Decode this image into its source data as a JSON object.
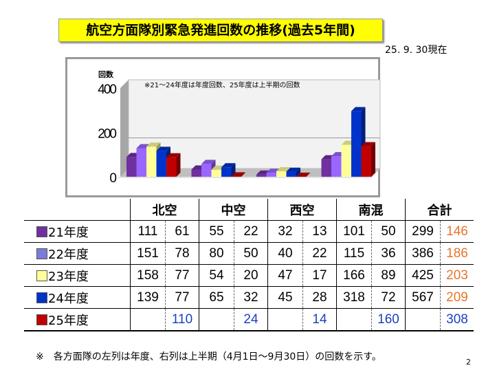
{
  "title": "航空方面隊別緊急発進回数の推移(過去5年間)",
  "date": "25. 9. 30現在",
  "chart_data": {
    "type": "bar",
    "ylabel": "回数",
    "annotation": "※21～24年度は年度回数、25年度は上半期の回数",
    "categories": [
      "北空",
      "中空",
      "西空",
      "南混"
    ],
    "yticks": [
      "0",
      "200",
      "400"
    ],
    "ylim": [
      0,
      400
    ],
    "series": [
      {
        "name": "21年度",
        "color": "#7030a0",
        "values": [
          111,
          55,
          32,
          101
        ]
      },
      {
        "name": "22年度",
        "color": "#9966ff",
        "values": [
          151,
          80,
          40,
          115
        ]
      },
      {
        "name": "23年度",
        "color": "#ffff99",
        "values": [
          158,
          54,
          47,
          166
        ]
      },
      {
        "name": "24年度",
        "color": "#0033cc",
        "values": [
          139,
          65,
          45,
          318
        ]
      },
      {
        "name": "25年度",
        "color": "#c00000",
        "values": [
          110,
          24,
          14,
          160
        ]
      }
    ]
  },
  "table": {
    "headers": [
      "北空",
      "中空",
      "西空",
      "南混",
      "合計"
    ],
    "rows": [
      {
        "label": "21年度",
        "color": "#7030a0",
        "cells": [
          "111",
          "61",
          "55",
          "22",
          "32",
          "13",
          "101",
          "50",
          "299",
          "146"
        ]
      },
      {
        "label": "22年度",
        "color": "#7b7bdb",
        "cells": [
          "151",
          "78",
          "80",
          "50",
          "40",
          "22",
          "115",
          "36",
          "386",
          "186"
        ]
      },
      {
        "label": "23年度",
        "color": "#ffff99",
        "cells": [
          "158",
          "77",
          "54",
          "20",
          "47",
          "17",
          "166",
          "89",
          "425",
          "203"
        ]
      },
      {
        "label": "24年度",
        "color": "#0033cc",
        "cells": [
          "139",
          "77",
          "65",
          "32",
          "45",
          "28",
          "318",
          "72",
          "567",
          "209"
        ]
      },
      {
        "label": "25年度",
        "color": "#c00000",
        "cells": [
          "",
          "110",
          "",
          "24",
          "",
          "14",
          "",
          "160",
          "",
          "308"
        ]
      }
    ]
  },
  "footnote": "※　各方面隊の左列は年度、右列は上半期（4月1日～9月30日）の回数を示す。",
  "page_number": "2"
}
